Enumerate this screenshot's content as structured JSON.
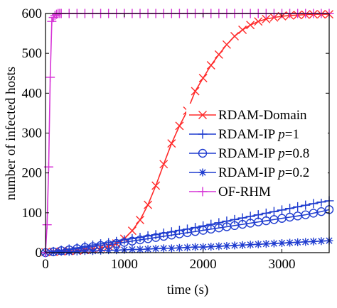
{
  "chart_data": {
    "type": "line",
    "title": "",
    "xlabel": "time (s)",
    "ylabel": "number of infected hosts",
    "xlim": [
      0,
      3600
    ],
    "ylim": [
      0,
      600
    ],
    "xticks": [
      0,
      1000,
      2000,
      3000
    ],
    "xtick_labels": [
      "0",
      "1000",
      "2000",
      "3000"
    ],
    "yticks": [
      0,
      100,
      200,
      300,
      400,
      500,
      600
    ],
    "ytick_labels": [
      "0",
      "100",
      "200",
      "300",
      "400",
      "500",
      "600"
    ],
    "grid": false,
    "legend_position": "right",
    "series": [
      {
        "name": "RDAM-Domain",
        "legend_label": {
          "pre": "RDAM-Domain",
          "italic": "",
          "post": ""
        },
        "color": "#ff2a2a",
        "marker": "x",
        "x": [
          0,
          100,
          200,
          300,
          400,
          500,
          600,
          700,
          800,
          900,
          1000,
          1100,
          1200,
          1300,
          1400,
          1500,
          1600,
          1700,
          1800,
          1900,
          2000,
          2100,
          2200,
          2300,
          2400,
          2500,
          2600,
          2700,
          2800,
          2900,
          3000,
          3100,
          3200,
          3300,
          3400,
          3500,
          3600
        ],
        "values": [
          1,
          2,
          3,
          4,
          5,
          7,
          9,
          12,
          16,
          23,
          35,
          55,
          82,
          120,
          168,
          222,
          274,
          318,
          356,
          405,
          438,
          470,
          497,
          522,
          543,
          559,
          571,
          580,
          586,
          590,
          593,
          595,
          596,
          597,
          598,
          598,
          598
        ]
      },
      {
        "name": "RDAM-IP p=1",
        "legend_label": {
          "pre": "RDAM-IP ",
          "italic": "p",
          "post": "=1"
        },
        "color": "#1f3ccf",
        "marker": "+",
        "x": [
          0,
          100,
          200,
          300,
          400,
          500,
          600,
          700,
          800,
          900,
          1000,
          1100,
          1200,
          1300,
          1400,
          1500,
          1600,
          1700,
          1800,
          1900,
          2000,
          2100,
          2200,
          2300,
          2400,
          2500,
          2600,
          2700,
          2800,
          2900,
          3000,
          3100,
          3200,
          3300,
          3400,
          3500,
          3600
        ],
        "values": [
          0,
          3,
          6,
          9,
          12,
          16,
          19,
          22,
          25,
          28,
          32,
          35,
          38,
          42,
          45,
          49,
          52,
          56,
          59,
          63,
          67,
          71,
          75,
          79,
          83,
          87,
          91,
          95,
          99,
          103,
          107,
          111,
          115,
          119,
          123,
          127,
          130
        ]
      },
      {
        "name": "RDAM-IP p=0.8",
        "legend_label": {
          "pre": "RDAM-IP ",
          "italic": "p",
          "post": "=0.8"
        },
        "color": "#1f3ccf",
        "marker": "o",
        "x": [
          0,
          100,
          200,
          300,
          400,
          500,
          600,
          700,
          800,
          900,
          1000,
          1100,
          1200,
          1300,
          1400,
          1500,
          1600,
          1700,
          1800,
          1900,
          2000,
          2100,
          2200,
          2300,
          2400,
          2500,
          2600,
          2700,
          2800,
          2900,
          3000,
          3100,
          3200,
          3300,
          3400,
          3500,
          3600
        ],
        "values": [
          0,
          2,
          5,
          7,
          10,
          13,
          15,
          18,
          20,
          23,
          26,
          29,
          32,
          35,
          38,
          41,
          44,
          47,
          50,
          53,
          56,
          59,
          62,
          65,
          68,
          71,
          74,
          77,
          80,
          83,
          86,
          89,
          92,
          95,
          99,
          103,
          108
        ]
      },
      {
        "name": "RDAM-IP p=0.2",
        "legend_label": {
          "pre": "RDAM-IP ",
          "italic": "p",
          "post": "=0.2"
        },
        "color": "#1f3ccf",
        "marker": "*",
        "x": [
          0,
          100,
          200,
          300,
          400,
          500,
          600,
          700,
          800,
          900,
          1000,
          1100,
          1200,
          1300,
          1400,
          1500,
          1600,
          1700,
          1800,
          1900,
          2000,
          2100,
          2200,
          2300,
          2400,
          2500,
          2600,
          2700,
          2800,
          2900,
          3000,
          3100,
          3200,
          3300,
          3400,
          3500,
          3600
        ],
        "values": [
          0,
          1,
          2,
          2,
          3,
          4,
          4,
          5,
          6,
          6,
          7,
          8,
          8,
          9,
          10,
          11,
          11,
          12,
          13,
          14,
          14,
          15,
          16,
          17,
          18,
          19,
          20,
          21,
          22,
          23,
          24,
          25,
          26,
          27,
          28,
          29,
          30
        ]
      },
      {
        "name": "OF-RHM",
        "legend_label": {
          "pre": "OF-RHM",
          "italic": "",
          "post": ""
        },
        "color": "#d633d6",
        "marker": "+",
        "x": [
          0,
          20,
          40,
          60,
          80,
          100,
          120,
          140,
          160,
          180,
          200,
          300,
          400,
          500,
          600,
          700,
          800,
          900,
          1000,
          1100,
          1200,
          1300,
          1400,
          1500,
          1600,
          1700,
          1800,
          1900,
          2000,
          2100,
          2200,
          2300,
          2400,
          2500,
          2600,
          2700,
          2800,
          2900,
          3000,
          3100,
          3200,
          3300,
          3400,
          3500,
          3600
        ],
        "values": [
          0,
          70,
          215,
          440,
          580,
          590,
          595,
          598,
          600,
          600,
          600,
          600,
          600,
          600,
          600,
          600,
          600,
          600,
          600,
          600,
          600,
          600,
          600,
          600,
          600,
          600,
          600,
          600,
          600,
          600,
          600,
          600,
          600,
          600,
          600,
          600,
          600,
          600,
          600,
          600,
          600,
          600,
          600,
          600,
          600
        ]
      }
    ]
  }
}
